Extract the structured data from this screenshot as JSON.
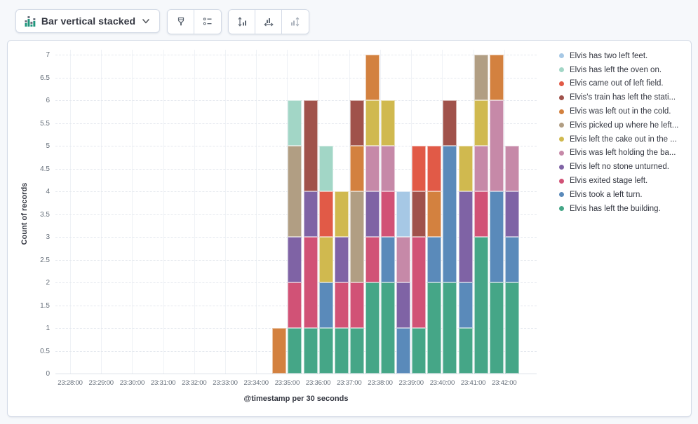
{
  "toolbar": {
    "chart_type": {
      "label": "Bar vertical stacked"
    },
    "style_buttons": [
      {
        "name": "visual-options-button",
        "icon": "brush-icon"
      },
      {
        "name": "legend-settings-button",
        "icon": "list-icon"
      }
    ],
    "axis_buttons": [
      {
        "name": "left-axis-button",
        "icon": "left-axis-icon",
        "disabled": false
      },
      {
        "name": "bottom-axis-button",
        "icon": "bottom-axis-icon",
        "disabled": false
      },
      {
        "name": "right-axis-button",
        "icon": "right-axis-icon",
        "disabled": true
      }
    ]
  },
  "colors": {
    "page_background": "#F6F8FB",
    "panel_border": "#D3DAE6",
    "icon_gray": "#5F6874",
    "icon_disabled": "#ABB2BC",
    "chart_icon_green": "#20957C"
  },
  "chart_data": {
    "type": "bar",
    "stacked": true,
    "orientation": "vertical",
    "xlabel": "@timestamp per 30 seconds",
    "ylabel": "Count of records",
    "ylim": [
      0,
      7
    ],
    "y_tick_step": 0.5,
    "grid": true,
    "legend_position": "right",
    "stack_order": "reverse-legend (first legend item on top of stack)",
    "x_axis_ticks": [
      "23:28:00",
      "23:29:00",
      "23:30:00",
      "23:31:00",
      "23:32:00",
      "23:33:00",
      "23:34:00",
      "23:35:00",
      "23:36:00",
      "23:37:00",
      "23:38:00",
      "23:39:00",
      "23:40:00",
      "23:41:00",
      "23:42:00"
    ],
    "x": [
      "23:34:30",
      "23:35:00",
      "23:35:30",
      "23:36:00",
      "23:36:30",
      "23:37:00",
      "23:37:30",
      "23:38:00",
      "23:38:30",
      "23:39:00",
      "23:39:30",
      "23:40:00",
      "23:40:30",
      "23:41:00",
      "23:41:30",
      "23:42:00"
    ],
    "series": [
      {
        "name": "Elvis has two left feet.",
        "color": "#A6C8E5",
        "values": [
          0,
          0,
          0,
          0,
          0,
          0,
          0,
          0,
          1,
          0,
          0,
          0,
          0,
          0,
          0,
          0
        ]
      },
      {
        "name": "Elvis has left the oven on.",
        "color": "#A2D6C6",
        "values": [
          0,
          1,
          0,
          1,
          0,
          0,
          0,
          0,
          0,
          0,
          0,
          0,
          0,
          0,
          0,
          0
        ]
      },
      {
        "name": "Elvis came out of left field.",
        "color": "#E15A47",
        "values": [
          0,
          0,
          0,
          1,
          0,
          0,
          0,
          0,
          0,
          1,
          1,
          0,
          0,
          0,
          0,
          0
        ]
      },
      {
        "name": "Elvis's train has left the stati...",
        "color": "#A0524B",
        "values": [
          0,
          0,
          2,
          0,
          0,
          1,
          0,
          0,
          0,
          1,
          0,
          1,
          0,
          0,
          0,
          0
        ]
      },
      {
        "name": "Elvis was left out in the cold.",
        "color": "#D3813F",
        "values": [
          1,
          0,
          0,
          0,
          0,
          1,
          1,
          0,
          0,
          0,
          1,
          0,
          0,
          0,
          1,
          0
        ]
      },
      {
        "name": "Elvis picked up where he left...",
        "color": "#B19E83",
        "values": [
          0,
          2,
          0,
          0,
          0,
          2,
          0,
          0,
          0,
          0,
          0,
          0,
          0,
          1,
          0,
          0
        ]
      },
      {
        "name": "Elvis left the cake out in the ...",
        "color": "#D0B94F",
        "values": [
          0,
          0,
          0,
          1,
          1,
          0,
          1,
          1,
          0,
          0,
          0,
          0,
          1,
          1,
          0,
          0
        ]
      },
      {
        "name": "Elvis was left holding the ba...",
        "color": "#C689A8",
        "values": [
          0,
          0,
          0,
          0,
          0,
          0,
          1,
          1,
          1,
          0,
          0,
          0,
          0,
          1,
          2,
          1
        ]
      },
      {
        "name": "Elvis left no stone unturned.",
        "color": "#7F63A5",
        "values": [
          0,
          1,
          1,
          0,
          1,
          0,
          1,
          0,
          1,
          0,
          0,
          0,
          2,
          0,
          0,
          1
        ]
      },
      {
        "name": "Elvis exited stage left.",
        "color": "#D15276",
        "values": [
          0,
          1,
          2,
          0,
          1,
          1,
          1,
          1,
          0,
          2,
          0,
          0,
          0,
          1,
          0,
          0
        ]
      },
      {
        "name": "Elvis took a left turn.",
        "color": "#5A8ABA",
        "values": [
          0,
          0,
          0,
          1,
          0,
          0,
          0,
          1,
          1,
          0,
          1,
          3,
          1,
          0,
          2,
          1
        ]
      },
      {
        "name": "Elvis has left the building.",
        "color": "#45A687",
        "values": [
          0,
          1,
          1,
          1,
          1,
          1,
          2,
          2,
          0,
          1,
          2,
          2,
          1,
          3,
          2,
          2
        ]
      }
    ]
  }
}
